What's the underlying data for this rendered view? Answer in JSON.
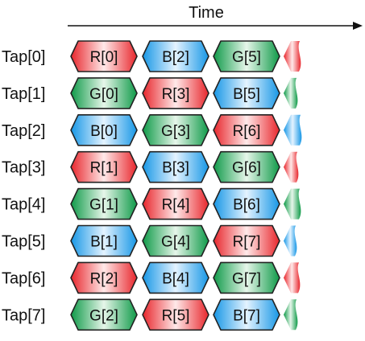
{
  "axis": {
    "title": "Time"
  },
  "colors": {
    "R": "red",
    "G": "green",
    "B": "blue"
  },
  "rows": [
    {
      "label": "Tap[0]",
      "cells": [
        {
          "text": "R[0]",
          "color": "R"
        },
        {
          "text": "B[2]",
          "color": "B"
        },
        {
          "text": "G[5]",
          "color": "G"
        }
      ],
      "trail": "R"
    },
    {
      "label": "Tap[1]",
      "cells": [
        {
          "text": "G[0]",
          "color": "G"
        },
        {
          "text": "R[3]",
          "color": "R"
        },
        {
          "text": "B[5]",
          "color": "B"
        }
      ],
      "trail": "G"
    },
    {
      "label": "Tap[2]",
      "cells": [
        {
          "text": "B[0]",
          "color": "B"
        },
        {
          "text": "G[3]",
          "color": "G"
        },
        {
          "text": "R[6]",
          "color": "R"
        }
      ],
      "trail": "B"
    },
    {
      "label": "Tap[3]",
      "cells": [
        {
          "text": "R[1]",
          "color": "R"
        },
        {
          "text": "B[3]",
          "color": "B"
        },
        {
          "text": "G[6]",
          "color": "G"
        }
      ],
      "trail": "R"
    },
    {
      "label": "Tap[4]",
      "cells": [
        {
          "text": "G[1]",
          "color": "G"
        },
        {
          "text": "R[4]",
          "color": "R"
        },
        {
          "text": "B[6]",
          "color": "B"
        }
      ],
      "trail": "G"
    },
    {
      "label": "Tap[5]",
      "cells": [
        {
          "text": "B[1]",
          "color": "B"
        },
        {
          "text": "G[4]",
          "color": "G"
        },
        {
          "text": "R[7]",
          "color": "R"
        }
      ],
      "trail": "B"
    },
    {
      "label": "Tap[6]",
      "cells": [
        {
          "text": "R[2]",
          "color": "R"
        },
        {
          "text": "B[4]",
          "color": "B"
        },
        {
          "text": "G[7]",
          "color": "G"
        }
      ],
      "trail": "R"
    },
    {
      "label": "Tap[7]",
      "cells": [
        {
          "text": "G[2]",
          "color": "G"
        },
        {
          "text": "R[5]",
          "color": "R"
        },
        {
          "text": "B[7]",
          "color": "B"
        }
      ],
      "trail": "G"
    }
  ]
}
